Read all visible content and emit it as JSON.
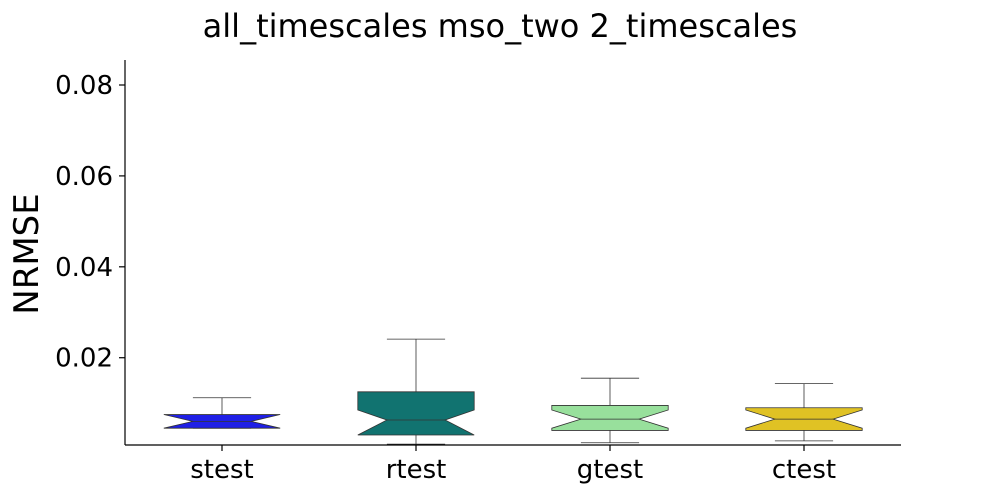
{
  "chart_data": {
    "type": "box",
    "title": "all_timescales mso_two 2_timescales",
    "xlabel": "",
    "ylabel": "NRMSE",
    "ylim": [
      0.0008,
      0.0855
    ],
    "yticks": [
      "0.02",
      "0.04",
      "0.06",
      "0.08"
    ],
    "ytick_values": [
      0.02,
      0.04,
      0.06,
      0.08
    ],
    "notched": true,
    "grid": false,
    "categories": [
      "stest",
      "rtest",
      "gtest",
      "ctest"
    ],
    "boxes": [
      {
        "label": "stest",
        "color": "#1f1fe6",
        "whisker_low": 0.0045,
        "q1": 0.0045,
        "median": 0.006,
        "q3": 0.0075,
        "whisker_high": 0.0112,
        "notch_low": 0.0045,
        "notch_high": 0.0075
      },
      {
        "label": "rtest",
        "color": "#117370",
        "whisker_low": 0.001,
        "q1": 0.003,
        "median": 0.0063,
        "q3": 0.0125,
        "whisker_high": 0.0241,
        "notch_low": 0.003,
        "notch_high": 0.0085
      },
      {
        "label": "gtest",
        "color": "#98e09c",
        "whisker_low": 0.0013,
        "q1": 0.004,
        "median": 0.0065,
        "q3": 0.0095,
        "whisker_high": 0.0155,
        "notch_low": 0.0045,
        "notch_high": 0.0085
      },
      {
        "label": "ctest",
        "color": "#e0c224",
        "whisker_low": 0.0017,
        "q1": 0.004,
        "median": 0.0065,
        "q3": 0.009,
        "whisker_high": 0.0143,
        "notch_low": 0.0045,
        "notch_high": 0.0085
      }
    ]
  }
}
